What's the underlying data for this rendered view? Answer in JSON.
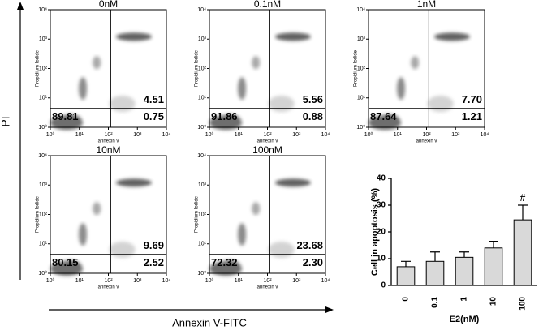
{
  "flow": {
    "y_axis_title": "PI",
    "x_axis_title": "Annexin V-FITC",
    "panel_y_label": "Propidium Iodide",
    "panel_x_label": "annexin v",
    "ticks": [
      {
        "value": 1,
        "label": "10⁰"
      },
      {
        "value": 10,
        "label": "10¹"
      },
      {
        "value": 100,
        "label": "10²"
      },
      {
        "value": 1000,
        "label": "10³"
      },
      {
        "value": 10000,
        "label": "10⁴"
      }
    ],
    "panels": [
      {
        "title": "0nM",
        "lower_left": "89.81",
        "upper_right": "4.51",
        "lower_right": "0.75"
      },
      {
        "title": "0.1nM",
        "lower_left": "91.86",
        "upper_right": "5.56",
        "lower_right": "0.88"
      },
      {
        "title": "1nM",
        "lower_left": "87.64",
        "upper_right": "7.70",
        "lower_right": "1.21"
      },
      {
        "title": "10nM",
        "lower_left": "80.15",
        "upper_right": "9.69",
        "lower_right": "2.52"
      },
      {
        "title": "100nM",
        "lower_left": "72.32",
        "upper_right": "23.68",
        "lower_right": "2.30"
      }
    ]
  },
  "chart_data": {
    "type": "bar",
    "y_label": "Cell in apoptosis (%)",
    "x_label": "E2(nM)",
    "categories": [
      "0",
      "0.1",
      "1",
      "10",
      "100"
    ],
    "values": [
      7,
      9,
      10.5,
      14,
      24.5
    ],
    "errors": [
      2,
      3.5,
      2,
      2.5,
      5.5
    ],
    "annotations": [
      null,
      null,
      null,
      null,
      "#"
    ],
    "color": "#d9d9d9",
    "ylim": [
      0,
      40
    ],
    "yticks": [
      0,
      10,
      20,
      30,
      40
    ]
  }
}
